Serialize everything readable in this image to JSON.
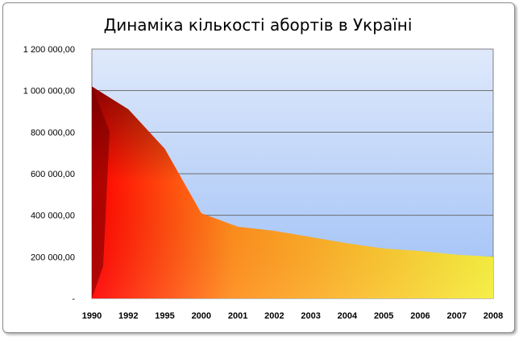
{
  "chart_data": {
    "type": "area",
    "title": "Динаміка кількості абортів в Україні",
    "xlabel": "",
    "ylabel": "",
    "categories": [
      "1990",
      "1992",
      "1995",
      "2000",
      "2001",
      "2002",
      "2003",
      "2004",
      "2005",
      "2006",
      "2007",
      "2008"
    ],
    "series": [
      {
        "values": [
          1020000,
          910000,
          720000,
          410000,
          345000,
          325000,
          295000,
          265000,
          240000,
          228000,
          210000,
          200000
        ]
      }
    ],
    "ylim": [
      0,
      1200000
    ],
    "y_ticks": [
      {
        "value": 0,
        "label": "-"
      },
      {
        "value": 200000,
        "label": "200 000,00"
      },
      {
        "value": 400000,
        "label": "400 000,00"
      },
      {
        "value": 600000,
        "label": "600 000,00"
      },
      {
        "value": 800000,
        "label": "800 000,00"
      },
      {
        "value": 1000000,
        "label": "1 000 000,00"
      },
      {
        "value": 1200000,
        "label": "1 200 000,00"
      }
    ],
    "grid": true,
    "legend": "none",
    "colors": {
      "plot_bg_top": "#dfe9fb",
      "plot_bg_bottom": "#9ec0f6",
      "gridline": "#6b6b6b",
      "area_left": "#ff0000",
      "area_mid": "#ff8c1a",
      "area_right": "#f5ee3a",
      "area_dark": "#6e0000"
    }
  }
}
